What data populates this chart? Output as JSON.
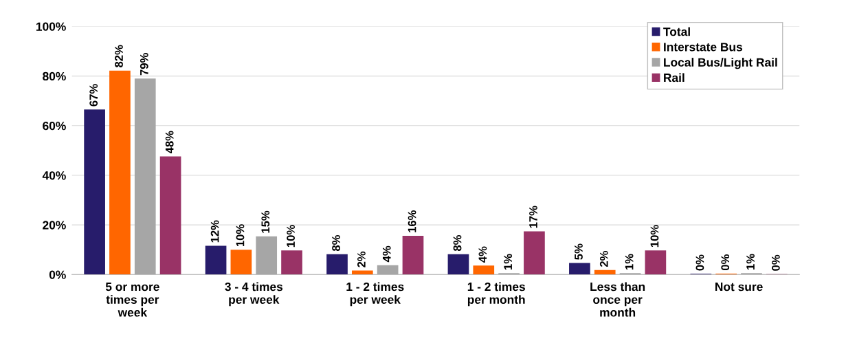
{
  "chart_data": {
    "type": "bar",
    "categories": [
      "5 or more\ntimes per\nweek",
      "3 - 4 times\nper week",
      "1 - 2 times\nper week",
      "1 - 2 times\nper month",
      "Less than\nonce per\nmonth",
      "Not sure"
    ],
    "series": [
      {
        "name": "Total",
        "color": "#271c6b",
        "values": [
          66.5,
          11.6,
          8.2,
          8.2,
          4.7,
          0.3
        ],
        "value_labels": [
          "67%",
          "12%",
          "8%",
          "8%",
          "5%",
          "0%"
        ]
      },
      {
        "name": "Interstate Bus",
        "color": "#ff6600",
        "values": [
          82.2,
          10,
          1.6,
          3.6,
          1.8,
          0.4
        ],
        "value_labels": [
          "82%",
          "10%",
          "2%",
          "4%",
          "2%",
          "0%"
        ]
      },
      {
        "name": "Local Bus/Light Rail",
        "color": "#a6a6a6",
        "values": [
          79,
          15.4,
          3.8,
          0.6,
          0.6,
          0.6
        ],
        "value_labels": [
          "79%",
          "15%",
          "4%",
          "1%",
          "1%",
          "1%"
        ]
      },
      {
        "name": "Rail",
        "color": "#993366",
        "values": [
          47.6,
          9.7,
          15.6,
          17.4,
          9.7,
          0.2
        ],
        "value_labels": [
          "48%",
          "10%",
          "16%",
          "17%",
          "10%",
          "0%"
        ]
      }
    ],
    "ylim": [
      0,
      100
    ],
    "yticks": [
      {
        "value": 0,
        "label": "0%"
      },
      {
        "value": 20,
        "label": "20%"
      },
      {
        "value": 40,
        "label": "40%"
      },
      {
        "value": 60,
        "label": "60%"
      },
      {
        "value": 80,
        "label": "80%"
      },
      {
        "value": 100,
        "label": "100%"
      }
    ],
    "grid": "y",
    "legend": "top right"
  }
}
